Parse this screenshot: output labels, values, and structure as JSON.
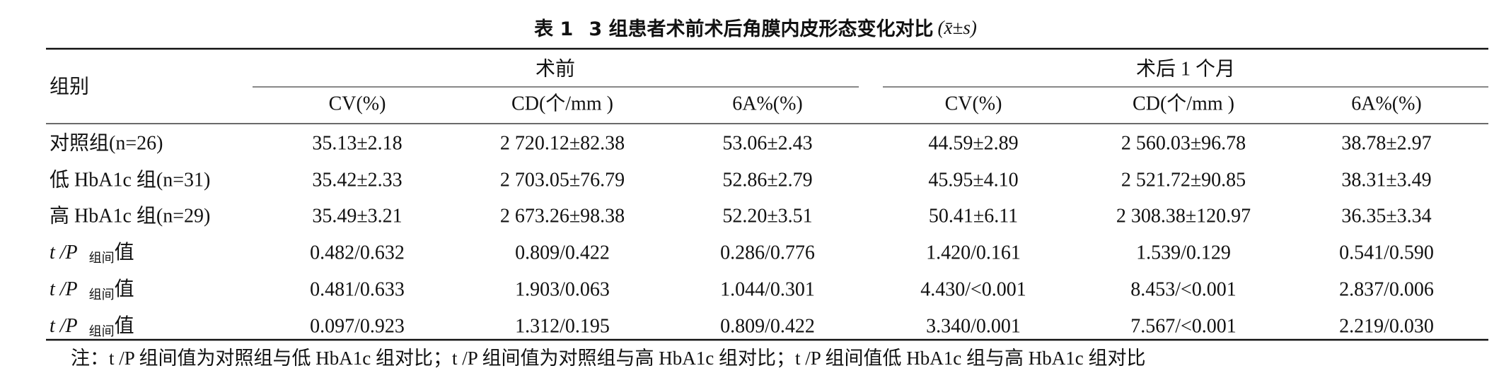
{
  "title": {
    "label": "表 1",
    "text": "3 组患者术前术后角膜内皮形态变化对比",
    "stat": "(x̄±s)"
  },
  "table": {
    "group_header": "组别",
    "spanners": [
      "术前",
      "术后 1 个月"
    ],
    "columns": [
      "CV(%)",
      "CD(个/mm )",
      "6A%(%)",
      "CV(%)",
      "CD(个/mm )",
      "6A%(%)"
    ],
    "rows": [
      {
        "label": "对照组(n=26)",
        "cells": [
          "35.13±2.18",
          "2 720.12±82.38",
          "53.06±2.43",
          "44.59±2.89",
          "2 560.03±96.78",
          "38.78±2.97"
        ]
      },
      {
        "label": "低 HbA1c 组(n=31)",
        "cells": [
          "35.42±2.33",
          "2 703.05±76.79",
          "52.86±2.79",
          "45.95±4.10",
          "2 521.72±90.85",
          "38.31±3.49"
        ]
      },
      {
        "label": "高 HbA1c 组(n=29)",
        "cells": [
          "35.49±3.21",
          "2 673.26±98.38",
          "52.20±3.51",
          "50.41±6.11",
          "2 308.38±120.97",
          "36.35±3.34"
        ]
      },
      {
        "label": {
          "stat": "t /P",
          "sub": "组间",
          "suffix": "值"
        },
        "cells": [
          "0.482/0.632",
          "0.809/0.422",
          "0.286/0.776",
          "1.420/0.161",
          "1.539/0.129",
          "0.541/0.590"
        ]
      },
      {
        "label": {
          "stat": "t /P",
          "sub": "组间",
          "suffix": "值"
        },
        "cells": [
          "0.481/0.633",
          "1.903/0.063",
          "1.044/0.301",
          "4.430/<0.001",
          "8.453/<0.001",
          "2.837/0.006"
        ]
      },
      {
        "label": {
          "stat": "t /P",
          "sub": "组间",
          "suffix": "值"
        },
        "cells": [
          "0.097/0.923",
          "1.312/0.195",
          "0.809/0.422",
          "3.340/0.001",
          "7.567/<0.001",
          "2.219/0.030"
        ]
      }
    ],
    "note": "注：t /P 组间值为对照组与低 HbA1c 组对比；t /P 组间值为对照组与高 HbA1c 组对比；t /P 组间值低 HbA1c 组与高 HbA1c 组对比"
  }
}
